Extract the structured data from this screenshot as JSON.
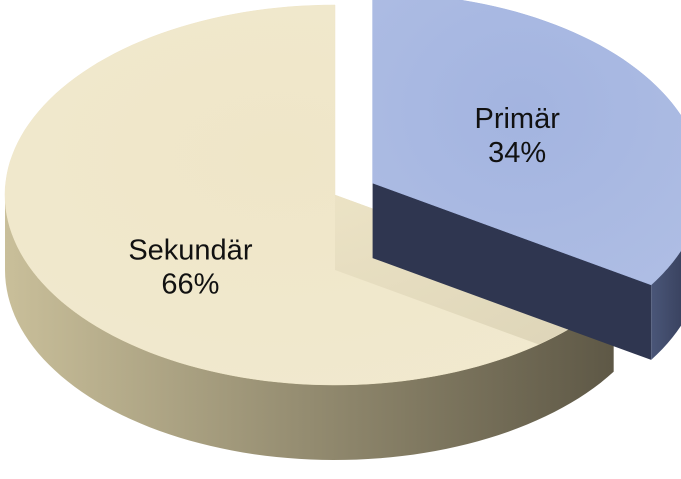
{
  "chart_data": {
    "type": "pie3d",
    "categories": [
      "Primär",
      "Sekundär"
    ],
    "values": [
      34,
      66
    ],
    "value_labels": [
      "34%",
      "66%"
    ],
    "colors": [
      "#a3b4e0",
      "#efe6c8"
    ],
    "side_colors": [
      [
        "#4a5678",
        "#2f3650"
      ],
      [
        "#c9bf9a",
        "#5e5846"
      ]
    ],
    "explode": [
      0.13,
      0
    ]
  }
}
